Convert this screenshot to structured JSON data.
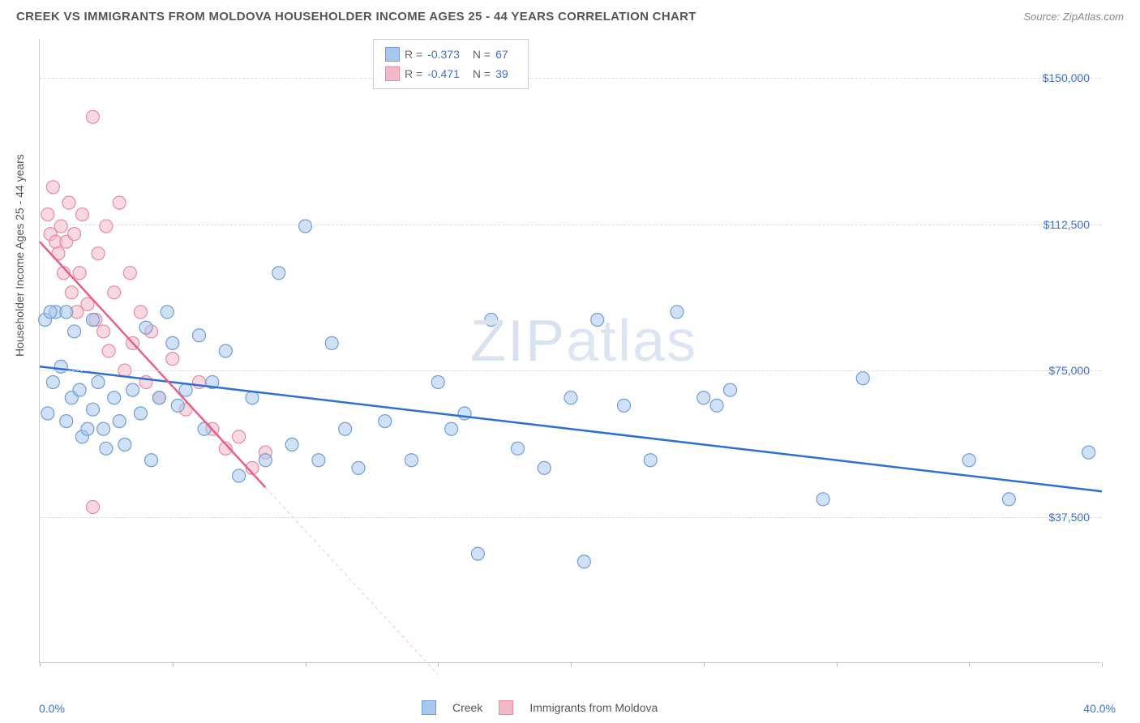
{
  "header": {
    "title": "CREEK VS IMMIGRANTS FROM MOLDOVA HOUSEHOLDER INCOME AGES 25 - 44 YEARS CORRELATION CHART",
    "source": "Source: ZipAtlas.com"
  },
  "watermark": {
    "text1": "ZIP",
    "text2": "atlas"
  },
  "chart": {
    "type": "scatter",
    "ylabel": "Householder Income Ages 25 - 44 years",
    "x_min_label": "0.0%",
    "x_max_label": "40.0%",
    "xlim": [
      0,
      40
    ],
    "ylim": [
      0,
      160000
    ],
    "y_ticks": [
      {
        "value": 37500,
        "label": "$37,500"
      },
      {
        "value": 75000,
        "label": "$75,000"
      },
      {
        "value": 112500,
        "label": "$112,500"
      },
      {
        "value": 150000,
        "label": "$150,000"
      }
    ],
    "x_tick_positions": [
      0,
      5,
      10,
      15,
      20,
      25,
      30,
      35,
      40
    ],
    "background_color": "#ffffff",
    "grid_color": "#dddddd",
    "marker_radius": 8,
    "marker_opacity": 0.55,
    "series": [
      {
        "name": "Creek",
        "color_fill": "#a9c6ec",
        "color_stroke": "#6f9fd8",
        "r_label": "R =",
        "r_value": "-0.373",
        "n_label": "N =",
        "n_value": "67",
        "trend": {
          "x1": 0,
          "y1": 76000,
          "x2": 40,
          "y2": 44000,
          "color": "#2e6fd6",
          "width": 2.5,
          "dash": "none"
        },
        "points": [
          [
            0.2,
            88000
          ],
          [
            0.3,
            64000
          ],
          [
            0.5,
            72000
          ],
          [
            0.6,
            90000
          ],
          [
            0.8,
            76000
          ],
          [
            1.0,
            62000
          ],
          [
            1.2,
            68000
          ],
          [
            1.3,
            85000
          ],
          [
            1.5,
            70000
          ],
          [
            1.6,
            58000
          ],
          [
            1.8,
            60000
          ],
          [
            2.0,
            65000
          ],
          [
            2.2,
            72000
          ],
          [
            2.4,
            60000
          ],
          [
            2.5,
            55000
          ],
          [
            2.8,
            68000
          ],
          [
            3.0,
            62000
          ],
          [
            3.2,
            56000
          ],
          [
            3.5,
            70000
          ],
          [
            3.8,
            64000
          ],
          [
            4.0,
            86000
          ],
          [
            4.2,
            52000
          ],
          [
            4.5,
            68000
          ],
          [
            4.8,
            90000
          ],
          [
            5.0,
            82000
          ],
          [
            5.2,
            66000
          ],
          [
            5.5,
            70000
          ],
          [
            6.0,
            84000
          ],
          [
            6.2,
            60000
          ],
          [
            6.5,
            72000
          ],
          [
            7.0,
            80000
          ],
          [
            7.5,
            48000
          ],
          [
            8.0,
            68000
          ],
          [
            8.5,
            52000
          ],
          [
            9.0,
            100000
          ],
          [
            9.5,
            56000
          ],
          [
            10.0,
            112000
          ],
          [
            10.5,
            52000
          ],
          [
            11.0,
            82000
          ],
          [
            11.5,
            60000
          ],
          [
            12.0,
            50000
          ],
          [
            13.0,
            62000
          ],
          [
            14.0,
            52000
          ],
          [
            15.0,
            72000
          ],
          [
            15.5,
            60000
          ],
          [
            16.0,
            64000
          ],
          [
            16.5,
            28000
          ],
          [
            17.0,
            88000
          ],
          [
            18.0,
            55000
          ],
          [
            19.0,
            50000
          ],
          [
            20.0,
            68000
          ],
          [
            20.5,
            26000
          ],
          [
            21.0,
            88000
          ],
          [
            22.0,
            66000
          ],
          [
            23.0,
            52000
          ],
          [
            24.0,
            90000
          ],
          [
            25.0,
            68000
          ],
          [
            25.5,
            66000
          ],
          [
            26.0,
            70000
          ],
          [
            29.5,
            42000
          ],
          [
            31.0,
            73000
          ],
          [
            35.0,
            52000
          ],
          [
            36.5,
            42000
          ],
          [
            39.5,
            54000
          ],
          [
            0.4,
            90000
          ],
          [
            1.0,
            90000
          ],
          [
            2.0,
            88000
          ]
        ]
      },
      {
        "name": "Immigrants from Moldova",
        "color_fill": "#f4b9c8",
        "color_stroke": "#e88aa4",
        "r_label": "R =",
        "r_value": "-0.471",
        "n_label": "N =",
        "n_value": "39",
        "trend": {
          "x1": 0,
          "y1": 108000,
          "x2": 8.5,
          "y2": 45000,
          "color": "#e95f87",
          "width": 2.5,
          "dash": "none"
        },
        "trend_ext": {
          "x1": 8.5,
          "y1": 45000,
          "x2": 15,
          "y2": -3000,
          "color": "#f0c3cf",
          "width": 1,
          "dash": "4,4"
        },
        "points": [
          [
            0.3,
            115000
          ],
          [
            0.4,
            110000
          ],
          [
            0.5,
            122000
          ],
          [
            0.6,
            108000
          ],
          [
            0.7,
            105000
          ],
          [
            0.8,
            112000
          ],
          [
            0.9,
            100000
          ],
          [
            1.0,
            108000
          ],
          [
            1.1,
            118000
          ],
          [
            1.2,
            95000
          ],
          [
            1.3,
            110000
          ],
          [
            1.4,
            90000
          ],
          [
            1.5,
            100000
          ],
          [
            1.6,
            115000
          ],
          [
            1.8,
            92000
          ],
          [
            2.0,
            140000
          ],
          [
            2.1,
            88000
          ],
          [
            2.2,
            105000
          ],
          [
            2.4,
            85000
          ],
          [
            2.5,
            112000
          ],
          [
            2.6,
            80000
          ],
          [
            2.8,
            95000
          ],
          [
            3.0,
            118000
          ],
          [
            3.2,
            75000
          ],
          [
            3.4,
            100000
          ],
          [
            3.5,
            82000
          ],
          [
            3.8,
            90000
          ],
          [
            4.0,
            72000
          ],
          [
            4.2,
            85000
          ],
          [
            4.5,
            68000
          ],
          [
            5.0,
            78000
          ],
          [
            5.5,
            65000
          ],
          [
            6.0,
            72000
          ],
          [
            6.5,
            60000
          ],
          [
            7.0,
            55000
          ],
          [
            7.5,
            58000
          ],
          [
            8.0,
            50000
          ],
          [
            2.0,
            40000
          ],
          [
            8.5,
            54000
          ]
        ]
      }
    ],
    "legend": {
      "series1_label": "Creek",
      "series2_label": "Immigrants from Moldova"
    }
  }
}
